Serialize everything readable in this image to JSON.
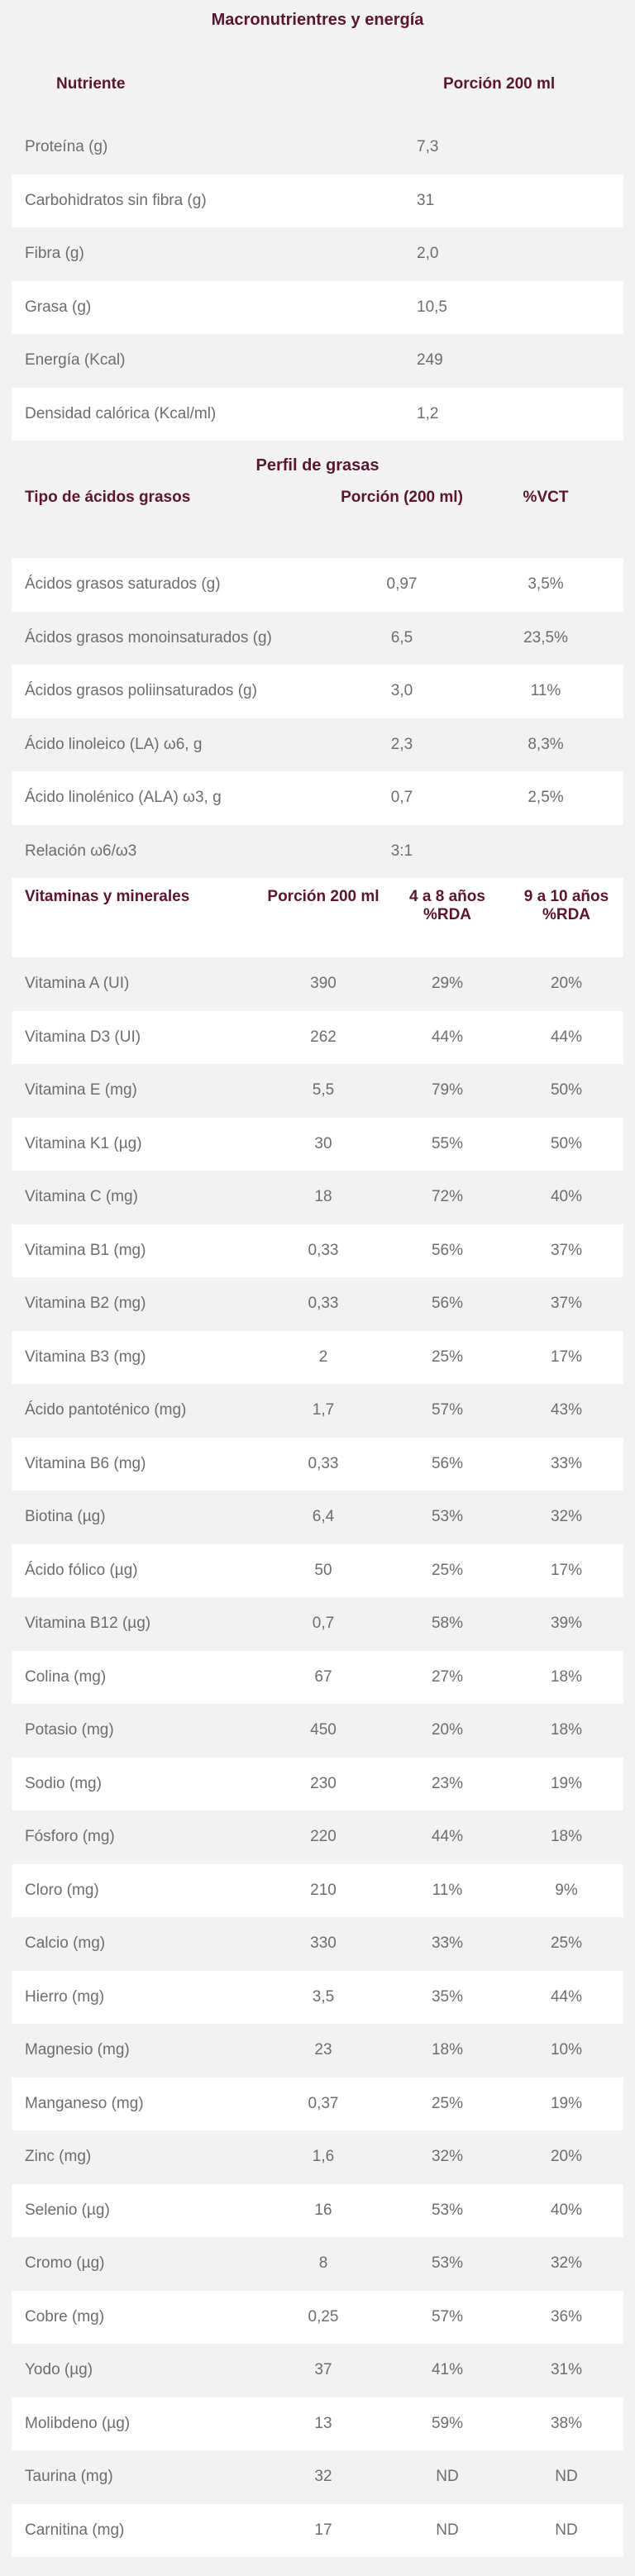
{
  "macro": {
    "caption": "Macronutrientres y energía",
    "headers": [
      "Nutriente",
      "Porción 200 ml"
    ],
    "rows": [
      [
        "Proteína (g)",
        "7,3"
      ],
      [
        "Carbohidratos sin fibra (g)",
        "31"
      ],
      [
        "Fibra (g)",
        "2,0"
      ],
      [
        "Grasa (g)",
        "10,5"
      ],
      [
        "Energía (Kcal)",
        "249"
      ],
      [
        "Densidad calórica (Kcal/ml)",
        "1,2"
      ]
    ]
  },
  "fat": {
    "caption": "Perfil de grasas",
    "headers": [
      "Tipo de ácidos grasos",
      "Porción (200 ml)",
      "%VCT"
    ],
    "rows": [
      [
        "Ácidos grasos saturados (g)",
        "0,97",
        "3,5%"
      ],
      [
        "Ácidos grasos monoinsaturados (g)",
        "6,5",
        "23,5%"
      ],
      [
        "Ácidos grasos poliinsaturados (g)",
        "3,0",
        "11%"
      ],
      [
        "Ácido linoleico (LA) ω6, g",
        "2,3",
        "8,3%"
      ],
      [
        "Ácido linolénico (ALA) ω3, g",
        "0,7",
        "2,5%"
      ],
      [
        "Relación ω6/ω3",
        "3:1",
        ""
      ]
    ]
  },
  "vit": {
    "headers": [
      "Vitaminas y minerales",
      "Porción 200 ml",
      "4 a 8 años %RDA",
      "9 a 10 años %RDA"
    ],
    "rows": [
      [
        "Vitamina A (UI)",
        "390",
        "29%",
        "20%"
      ],
      [
        "Vitamina D3 (UI)",
        "262",
        "44%",
        "44%"
      ],
      [
        "Vitamina E (mg)",
        "5,5",
        "79%",
        "50%"
      ],
      [
        "Vitamina K1 (µg)",
        "30",
        "55%",
        "50%"
      ],
      [
        "Vitamina C (mg)",
        "18",
        "72%",
        "40%"
      ],
      [
        "Vitamina B1 (mg)",
        "0,33",
        "56%",
        "37%"
      ],
      [
        "Vitamina B2 (mg)",
        "0,33",
        "56%",
        "37%"
      ],
      [
        "Vitamina B3 (mg)",
        "2",
        "25%",
        "17%"
      ],
      [
        "Ácido pantoténico (mg)",
        "1,7",
        "57%",
        "43%"
      ],
      [
        "Vitamina B6 (mg)",
        "0,33",
        "56%",
        "33%"
      ],
      [
        "Biotina (µg)",
        "6,4",
        "53%",
        "32%"
      ],
      [
        "Ácido fólico (µg)",
        "50",
        "25%",
        "17%"
      ],
      [
        "Vitamina B12 (µg)",
        "0,7",
        "58%",
        "39%"
      ],
      [
        "Colina (mg)",
        "67",
        "27%",
        "18%"
      ],
      [
        "Potasio (mg)",
        "450",
        "20%",
        "18%"
      ],
      [
        "Sodio (mg)",
        "230",
        "23%",
        "19%"
      ],
      [
        "Fósforo (mg)",
        "220",
        "44%",
        "18%"
      ],
      [
        "Cloro (mg)",
        "210",
        "11%",
        "9%"
      ],
      [
        "Calcio (mg)",
        "330",
        "33%",
        "25%"
      ],
      [
        "Hierro (mg)",
        "3,5",
        "35%",
        "44%"
      ],
      [
        "Magnesio (mg)",
        "23",
        "18%",
        "10%"
      ],
      [
        "Manganeso (mg)",
        "0,37",
        "25%",
        "19%"
      ],
      [
        "Zinc (mg)",
        "1,6",
        "32%",
        "20%"
      ],
      [
        "Selenio (µg)",
        "16",
        "53%",
        "40%"
      ],
      [
        "Cromo (µg)",
        "8",
        "53%",
        "32%"
      ],
      [
        "Cobre (mg)",
        "0,25",
        "57%",
        "36%"
      ],
      [
        "Yodo (µg)",
        "37",
        "41%",
        "31%"
      ],
      [
        "Molibdeno (µg)",
        "13",
        "59%",
        "38%"
      ],
      [
        "Taurina (mg)",
        "32",
        "ND",
        "ND"
      ],
      [
        "Carnitina (mg)",
        "17",
        "ND",
        "ND"
      ]
    ]
  }
}
